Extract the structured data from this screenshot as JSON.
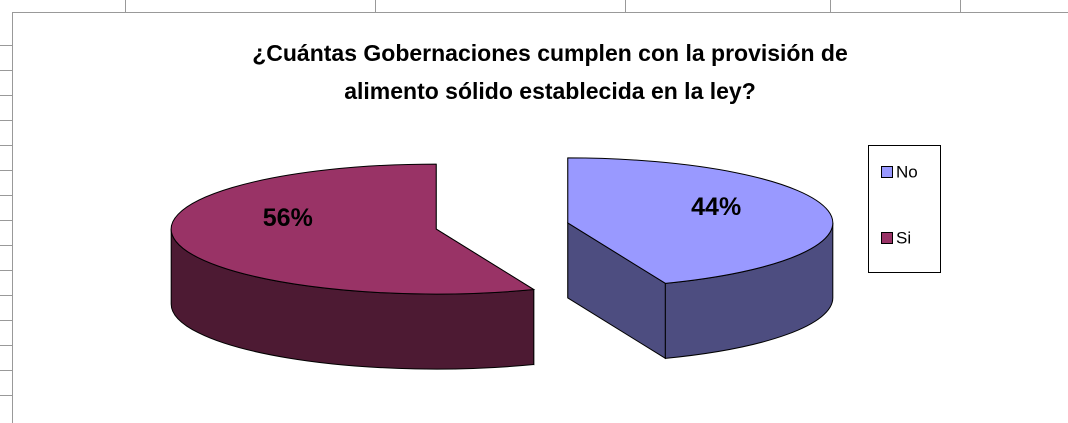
{
  "chart_data": {
    "type": "pie3d",
    "title": [
      "¿Cuántas Gobernaciones cumplen con la provisión de",
      "alimento sólido establecida en la ley?"
    ],
    "categories": [
      "No",
      "Si"
    ],
    "values": [
      44,
      56
    ],
    "value_labels": [
      "44%",
      "56%"
    ],
    "colors": [
      "#9999ff",
      "#993366"
    ],
    "legend": "right"
  }
}
